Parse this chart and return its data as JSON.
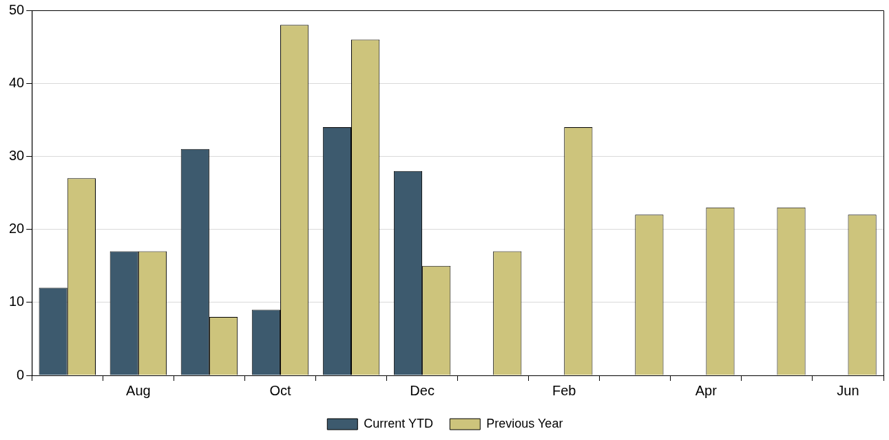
{
  "chart_data": {
    "type": "bar",
    "categories": [
      null,
      "Aug",
      null,
      "Oct",
      null,
      "Dec",
      null,
      "Feb",
      null,
      "Apr",
      null,
      "Jun"
    ],
    "series": [
      {
        "name": "Current YTD",
        "color": "#3d5a6e",
        "values": [
          12,
          17,
          31,
          9,
          34,
          28,
          null,
          null,
          null,
          null,
          null,
          null
        ]
      },
      {
        "name": "Previous Year",
        "color": "#cdc47c",
        "values": [
          27,
          17,
          8,
          48,
          46,
          15,
          17,
          34,
          22,
          23,
          23,
          22
        ]
      }
    ],
    "ylim": [
      0,
      50
    ],
    "yticks": [
      0,
      10,
      20,
      30,
      40,
      50
    ],
    "grid": "y",
    "legend": "bottom"
  }
}
